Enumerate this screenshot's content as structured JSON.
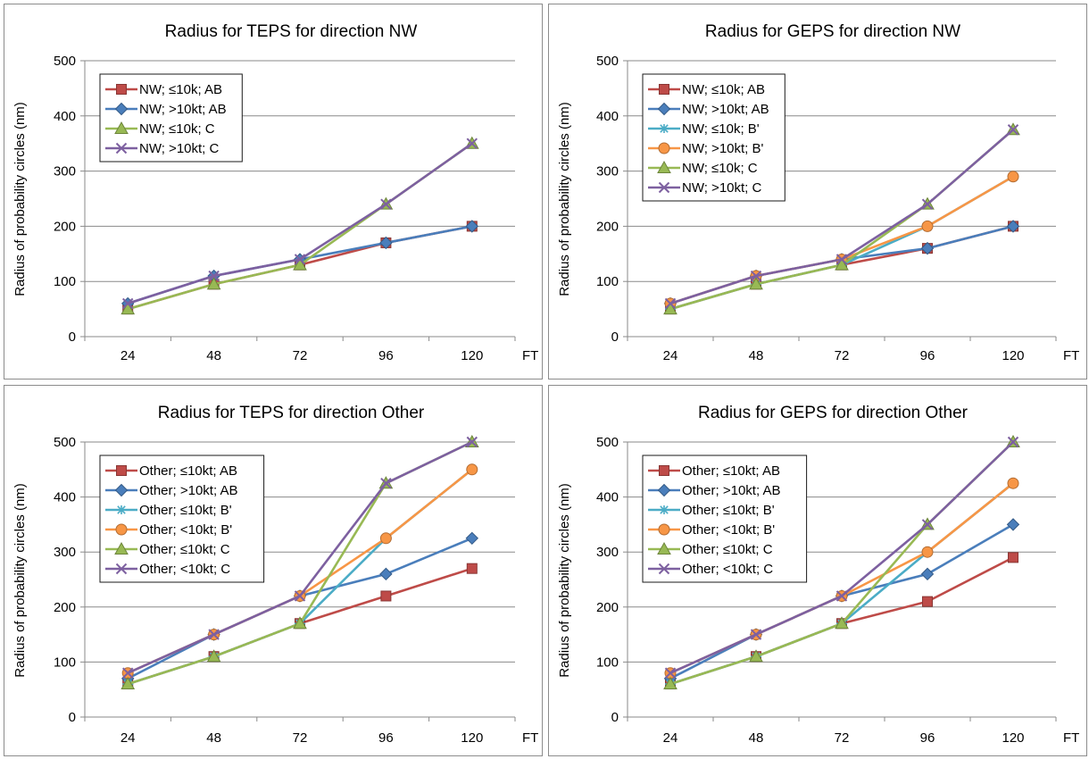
{
  "chart_data": [
    {
      "type": "line",
      "title": "Radius for TEPS for direction NW",
      "ylabel": "Radius of probability circles (nm)",
      "xlabel": "FT",
      "categories": [
        "24",
        "48",
        "72",
        "96",
        "120"
      ],
      "ylim": [
        0,
        500
      ],
      "yticks": [
        "0",
        "100",
        "200",
        "300",
        "400",
        "500"
      ],
      "grid": true,
      "legend_position": "top-left",
      "series": [
        {
          "name": "NW; ≤10k; AB",
          "values": [
            50,
            95,
            130,
            170,
            200
          ],
          "color": "#be4b48",
          "marker": "square"
        },
        {
          "name": "NW; >10kt; AB",
          "values": [
            60,
            110,
            140,
            170,
            200
          ],
          "color": "#4a7ebb",
          "marker": "diamond"
        },
        {
          "name": "NW; ≤10k; C",
          "values": [
            50,
            95,
            130,
            240,
            350
          ],
          "color": "#98b954",
          "marker": "triangle"
        },
        {
          "name": "NW; >10kt; C",
          "values": [
            60,
            110,
            140,
            240,
            350
          ],
          "color": "#7d60a0",
          "marker": "x"
        }
      ]
    },
    {
      "type": "line",
      "title": "Radius for GEPS for direction NW",
      "ylabel": "Radius of probability circles (nm)",
      "xlabel": "FT",
      "categories": [
        "24",
        "48",
        "72",
        "96",
        "120"
      ],
      "ylim": [
        0,
        500
      ],
      "yticks": [
        "0",
        "100",
        "200",
        "300",
        "400",
        "500"
      ],
      "grid": true,
      "legend_position": "top-left",
      "series": [
        {
          "name": "NW; ≤10k; AB",
          "values": [
            50,
            95,
            130,
            160,
            200
          ],
          "color": "#be4b48",
          "marker": "square"
        },
        {
          "name": "NW; >10kt; AB",
          "values": [
            60,
            110,
            140,
            160,
            200
          ],
          "color": "#4a7ebb",
          "marker": "diamond"
        },
        {
          "name": "NW; ≤10k; B'",
          "values": [
            50,
            95,
            130,
            200,
            290
          ],
          "color": "#4bacc6",
          "marker": "star"
        },
        {
          "name": "NW; >10kt; B'",
          "values": [
            60,
            110,
            140,
            200,
            290
          ],
          "color": "#f79646",
          "marker": "circle"
        },
        {
          "name": "NW; ≤10k; C",
          "values": [
            50,
            95,
            130,
            240,
            375
          ],
          "color": "#98b954",
          "marker": "triangle"
        },
        {
          "name": "NW; >10kt; C",
          "values": [
            60,
            110,
            140,
            240,
            375
          ],
          "color": "#7d60a0",
          "marker": "x"
        }
      ]
    },
    {
      "type": "line",
      "title": "Radius for TEPS for direction Other",
      "ylabel": "Radius of probability circles (nm)",
      "xlabel": "FT",
      "categories": [
        "24",
        "48",
        "72",
        "96",
        "120"
      ],
      "ylim": [
        0,
        500
      ],
      "yticks": [
        "0",
        "100",
        "200",
        "300",
        "400",
        "500"
      ],
      "grid": true,
      "legend_position": "top-left",
      "series": [
        {
          "name": "Other; ≤10kt; AB",
          "values": [
            60,
            110,
            170,
            220,
            270
          ],
          "color": "#be4b48",
          "marker": "square"
        },
        {
          "name": "Other; >10kt; AB",
          "values": [
            70,
            150,
            220,
            260,
            325
          ],
          "color": "#4a7ebb",
          "marker": "diamond"
        },
        {
          "name": "Other; ≤10kt; B'",
          "values": [
            60,
            110,
            170,
            325,
            450
          ],
          "color": "#4bacc6",
          "marker": "star"
        },
        {
          "name": "Other; <10kt; B'",
          "values": [
            80,
            150,
            220,
            325,
            450
          ],
          "color": "#f79646",
          "marker": "circle"
        },
        {
          "name": "Other; ≤10kt; C",
          "values": [
            60,
            110,
            170,
            425,
            500
          ],
          "color": "#98b954",
          "marker": "triangle"
        },
        {
          "name": "Other; <10kt; C",
          "values": [
            80,
            150,
            220,
            425,
            500
          ],
          "color": "#7d60a0",
          "marker": "x"
        }
      ]
    },
    {
      "type": "line",
      "title": "Radius for GEPS for direction Other",
      "ylabel": "Radius of probability circles (nm)",
      "xlabel": "FT",
      "categories": [
        "24",
        "48",
        "72",
        "96",
        "120"
      ],
      "ylim": [
        0,
        500
      ],
      "yticks": [
        "0",
        "100",
        "200",
        "300",
        "400",
        "500"
      ],
      "grid": true,
      "legend_position": "top-left",
      "series": [
        {
          "name": "Other; ≤10kt; AB",
          "values": [
            60,
            110,
            170,
            210,
            290
          ],
          "color": "#be4b48",
          "marker": "square"
        },
        {
          "name": "Other; >10kt; AB",
          "values": [
            70,
            150,
            220,
            260,
            350
          ],
          "color": "#4a7ebb",
          "marker": "diamond"
        },
        {
          "name": "Other; ≤10kt; B'",
          "values": [
            60,
            110,
            170,
            300,
            425
          ],
          "color": "#4bacc6",
          "marker": "star"
        },
        {
          "name": "Other; <10kt; B'",
          "values": [
            80,
            150,
            220,
            300,
            425
          ],
          "color": "#f79646",
          "marker": "circle"
        },
        {
          "name": "Other; ≤10kt; C",
          "values": [
            60,
            110,
            170,
            350,
            500
          ],
          "color": "#98b954",
          "marker": "triangle"
        },
        {
          "name": "Other; <10kt; C",
          "values": [
            80,
            150,
            220,
            350,
            500
          ],
          "color": "#7d60a0",
          "marker": "x"
        }
      ]
    }
  ]
}
